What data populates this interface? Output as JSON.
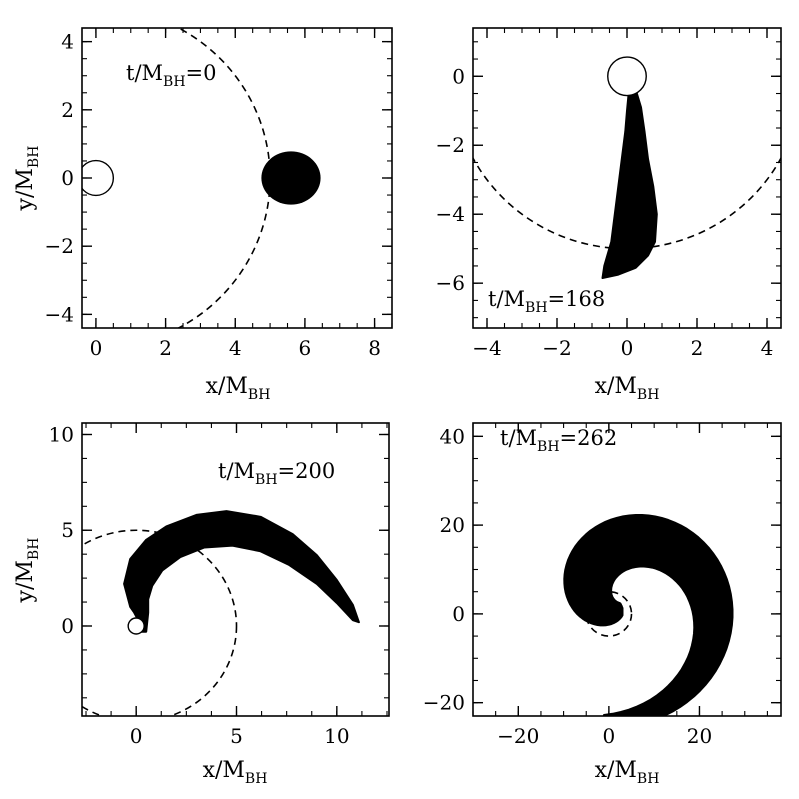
{
  "chart_data": [
    {
      "type": "scatter",
      "panel": "top-left",
      "annotation": {
        "prefix": "t/M",
        "sub": "BH",
        "suffix": "=0"
      },
      "xlabel": {
        "main": "x/M",
        "sub": "BH"
      },
      "ylabel": {
        "main": "y/M",
        "sub": "BH"
      },
      "xlim": [
        -0.4,
        8.5
      ],
      "ylim": [
        -4.4,
        4.4
      ],
      "xticks": [
        0,
        2,
        4,
        6,
        8
      ],
      "yticks": [
        -4,
        -2,
        0,
        2,
        4
      ],
      "black_hole": {
        "x": 0,
        "y": 0,
        "r": 0.5
      },
      "reference_circle": {
        "x": 0,
        "y": 0,
        "r": 5
      },
      "star": {
        "shape": "blob",
        "cx": 5.6,
        "cy": 0,
        "rx": 0.85,
        "ry": 0.78
      }
    },
    {
      "type": "scatter",
      "panel": "top-right",
      "annotation": {
        "prefix": "t/M",
        "sub": "BH",
        "suffix": "=168"
      },
      "xlabel": {
        "main": "x/M",
        "sub": "BH"
      },
      "ylabel": {
        "main": "",
        "sub": ""
      },
      "xlim": [
        -4.4,
        4.4
      ],
      "ylim": [
        -7.3,
        1.4
      ],
      "xticks": [
        -4,
        -2,
        0,
        2,
        4
      ],
      "yticks": [
        -6,
        -4,
        -2,
        0
      ],
      "black_hole": {
        "x": 0,
        "y": 0,
        "r": 0.55
      },
      "reference_circle": {
        "x": 0,
        "y": 0,
        "r": 5
      },
      "star": {
        "shape": "polygon",
        "outline": [
          [
            0.05,
            -0.45
          ],
          [
            0.25,
            -0.4
          ],
          [
            0.4,
            -0.9
          ],
          [
            0.5,
            -1.6
          ],
          [
            0.6,
            -2.4
          ],
          [
            0.75,
            -3.2
          ],
          [
            0.85,
            -4.0
          ],
          [
            0.8,
            -4.8
          ],
          [
            0.6,
            -5.2
          ],
          [
            0.25,
            -5.55
          ],
          [
            -0.25,
            -5.75
          ],
          [
            -0.7,
            -5.85
          ],
          [
            -0.65,
            -5.5
          ],
          [
            -0.45,
            -4.8
          ],
          [
            -0.35,
            -4.0
          ],
          [
            -0.25,
            -3.2
          ],
          [
            -0.15,
            -2.4
          ],
          [
            -0.05,
            -1.6
          ],
          [
            0.0,
            -1.0
          ]
        ]
      }
    },
    {
      "type": "scatter",
      "panel": "bottom-left",
      "annotation": {
        "prefix": "t/M",
        "sub": "BH",
        "suffix": "=200"
      },
      "xlabel": {
        "main": "x/M",
        "sub": "BH"
      },
      "ylabel": {
        "main": "y/M",
        "sub": "BH"
      },
      "xlim": [
        -2.7,
        12.6
      ],
      "ylim": [
        -4.7,
        10.6
      ],
      "xticks": [
        0,
        5,
        10
      ],
      "yticks": [
        0,
        5,
        10
      ],
      "black_hole": {
        "x": 0,
        "y": 0,
        "r": 0.5
      },
      "reference_circle": {
        "x": 0,
        "y": 0,
        "r": 5
      },
      "star": {
        "shape": "polygon",
        "outline": [
          [
            -0.3,
            1.0
          ],
          [
            -0.6,
            2.2
          ],
          [
            -0.3,
            3.5
          ],
          [
            0.5,
            4.5
          ],
          [
            1.5,
            5.2
          ],
          [
            3.0,
            5.8
          ],
          [
            4.5,
            6.0
          ],
          [
            6.2,
            5.7
          ],
          [
            7.8,
            4.8
          ],
          [
            9.0,
            3.7
          ],
          [
            10.0,
            2.4
          ],
          [
            10.8,
            1.1
          ],
          [
            11.1,
            0.2
          ],
          [
            10.8,
            0.3
          ],
          [
            10.0,
            1.2
          ],
          [
            9.0,
            2.2
          ],
          [
            7.6,
            3.2
          ],
          [
            6.2,
            3.9
          ],
          [
            4.8,
            4.2
          ],
          [
            3.4,
            4.1
          ],
          [
            2.2,
            3.6
          ],
          [
            1.3,
            2.9
          ],
          [
            0.8,
            2.1
          ],
          [
            0.6,
            1.4
          ],
          [
            0.6,
            0.7
          ],
          [
            0.5,
            -0.3
          ],
          [
            0.2,
            -0.3
          ],
          [
            0.1,
            0.3
          ],
          [
            -0.1,
            0.7
          ]
        ]
      }
    },
    {
      "type": "scatter",
      "panel": "bottom-right",
      "annotation": {
        "prefix": "t/M",
        "sub": "BH",
        "suffix": "=262"
      },
      "xlabel": {
        "main": "x/M",
        "sub": "BH"
      },
      "ylabel": {
        "main": "",
        "sub": ""
      },
      "xlim": [
        -30,
        38
      ],
      "ylim": [
        -23,
        43
      ],
      "xticks": [
        -20,
        0,
        20
      ],
      "yticks": [
        -20,
        0,
        20,
        40
      ],
      "black_hole": {
        "x": 0,
        "y": 0,
        "r": 0.5
      },
      "reference_circle": {
        "x": 0,
        "y": 0,
        "r": 5
      },
      "star": {
        "shape": "spiral"
      }
    }
  ]
}
